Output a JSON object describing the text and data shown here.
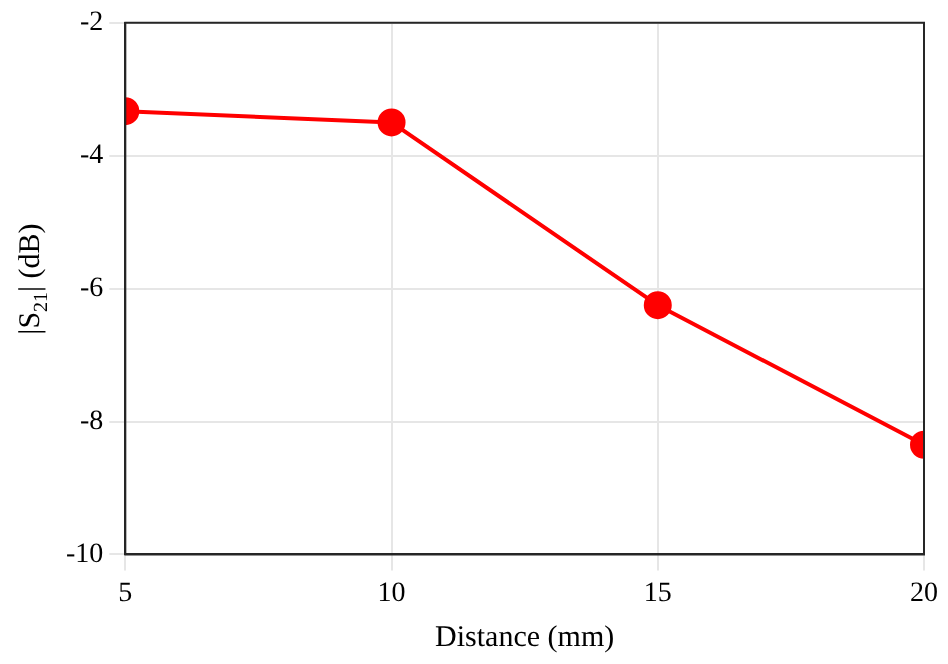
{
  "chart_data": {
    "type": "line",
    "xlabel": "Distance (mm)",
    "ylabel": "|S$_{21}$| (dB)",
    "x": [
      5,
      10,
      15,
      20
    ],
    "series": [
      {
        "color": "#ff0000",
        "values": [
          -3.33,
          -3.5,
          -6.25,
          -8.35
        ]
      }
    ],
    "xlim": [
      5,
      20
    ],
    "xticks": [
      5,
      10,
      15,
      20
    ],
    "ylim": [
      -10,
      -2
    ],
    "yticks": [
      -10,
      -8,
      -6,
      -4,
      -2
    ],
    "grid": true,
    "marker": "circle",
    "line_style": "solid"
  }
}
